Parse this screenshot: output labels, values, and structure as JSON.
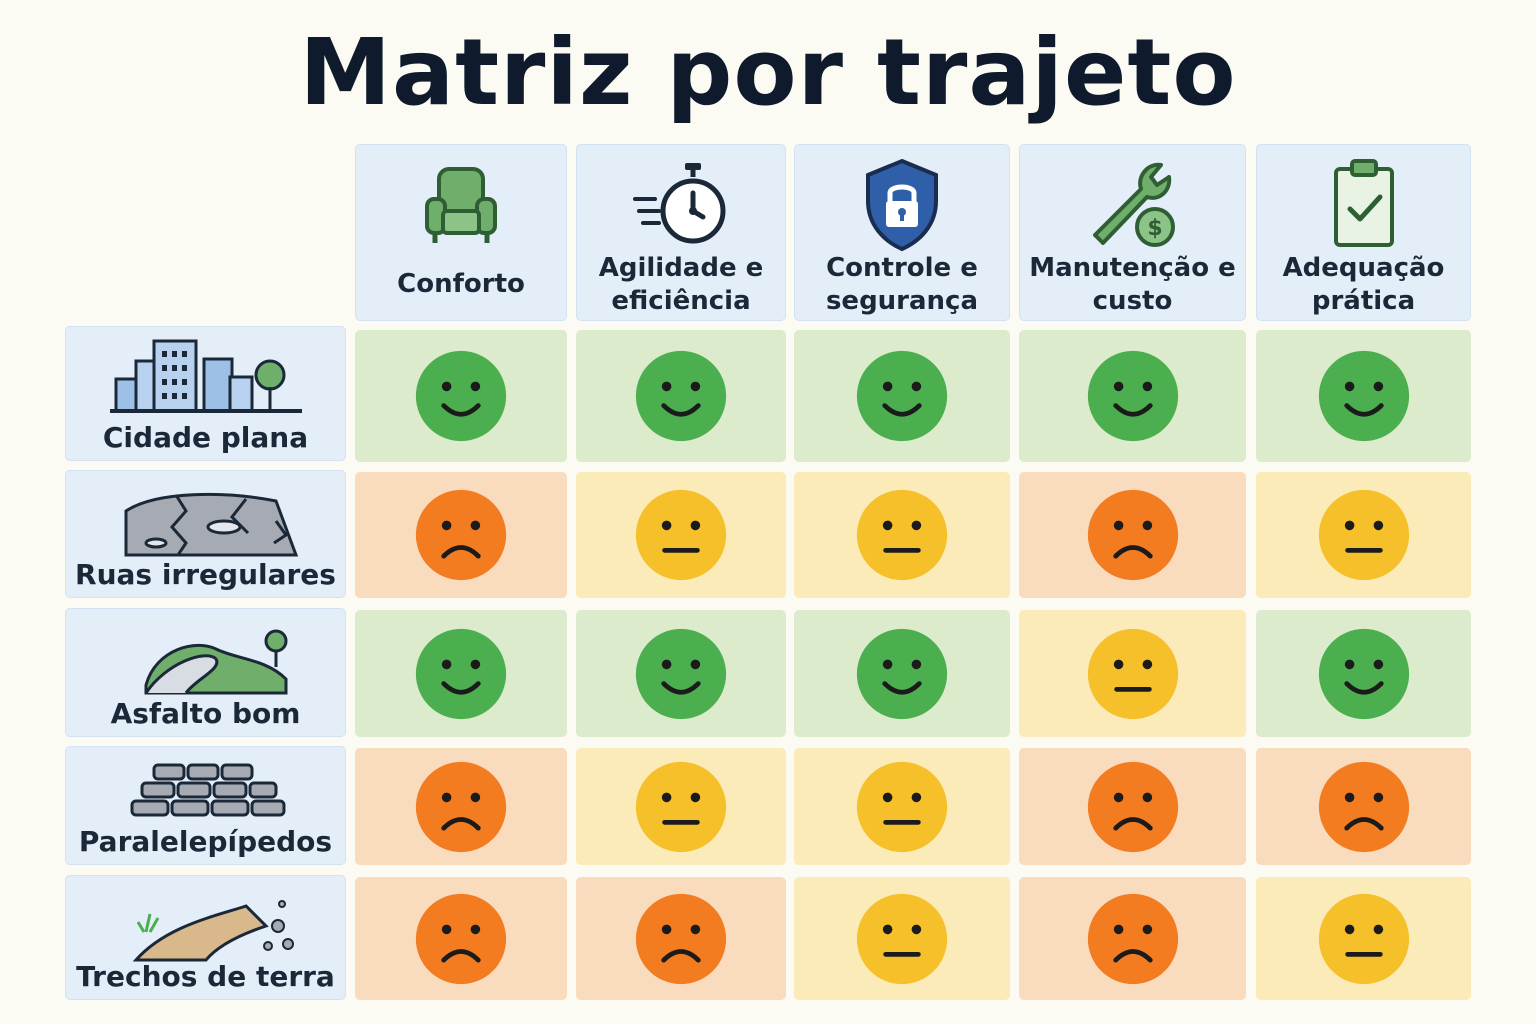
{
  "title": "Matriz por trajeto",
  "columns": [
    {
      "label": "Conforto",
      "icon": "armchair-icon"
    },
    {
      "label": "Agilidade e\neficiência",
      "icon": "stopwatch-icon"
    },
    {
      "label": "Controle e\nsegurança",
      "icon": "shield-lock-icon"
    },
    {
      "label": "Manutenção e\ncusto",
      "icon": "wrench-coin-icon"
    },
    {
      "label": "Adequação\nprática",
      "icon": "clipboard-check-icon"
    }
  ],
  "rows": [
    {
      "label": "Cidade plana",
      "icon": "city-icon",
      "ratings": [
        "good",
        "good",
        "good",
        "good",
        "good"
      ]
    },
    {
      "label": "Ruas irregulares",
      "icon": "cracked-road-icon",
      "ratings": [
        "bad",
        "neutral",
        "neutral",
        "bad",
        "neutral"
      ]
    },
    {
      "label": "Asfalto bom",
      "icon": "winding-road-icon",
      "ratings": [
        "good",
        "good",
        "good",
        "neutral",
        "good"
      ]
    },
    {
      "label": "Paralelepípedos",
      "icon": "cobblestones-icon",
      "ratings": [
        "bad",
        "neutral",
        "neutral",
        "bad",
        "bad"
      ]
    },
    {
      "label": "Trechos de terra",
      "icon": "dirt-path-icon",
      "ratings": [
        "bad",
        "bad",
        "neutral",
        "bad",
        "neutral"
      ]
    }
  ],
  "colors": {
    "good": "#4caf4f",
    "neutral": "#f6c02a",
    "bad": "#f47c20"
  }
}
